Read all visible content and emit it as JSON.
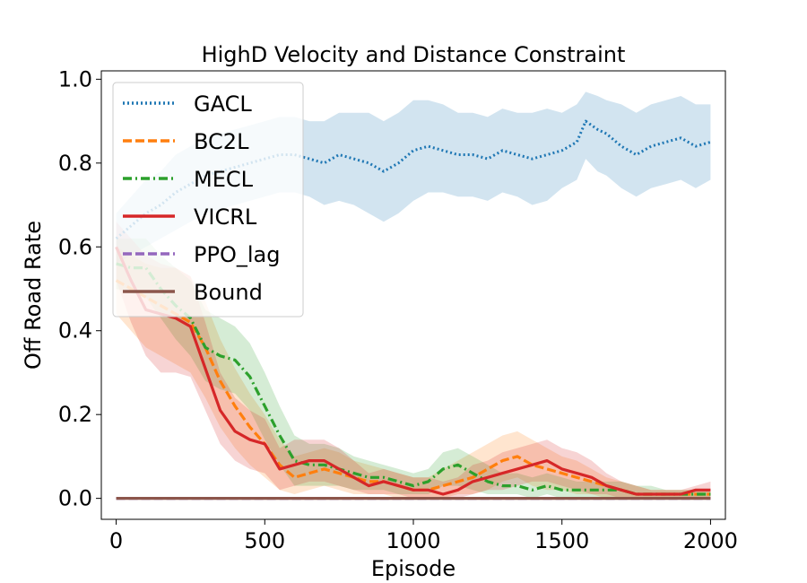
{
  "chart_data": {
    "type": "line",
    "title": "HighD Velocity and Distance Constraint",
    "xlabel": "Episode",
    "ylabel": "Off Road Rate",
    "xlim": [
      -50,
      2050
    ],
    "ylim": [
      -0.05,
      1.02
    ],
    "xticks": [
      0,
      500,
      1000,
      1500,
      2000
    ],
    "xtick_labels": [
      "0",
      "500",
      "1000",
      "1500",
      "2000"
    ],
    "yticks": [
      0.0,
      0.2,
      0.4,
      0.6,
      0.8,
      1.0
    ],
    "ytick_labels": [
      "0.0",
      "0.2",
      "0.4",
      "0.6",
      "0.8",
      "1.0"
    ],
    "legend_position": "upper-left",
    "series": [
      {
        "name": "GACL",
        "color": "#1f77b4",
        "dash": "dotted",
        "x": [
          0,
          50,
          100,
          150,
          200,
          250,
          300,
          350,
          400,
          450,
          500,
          550,
          600,
          650,
          700,
          750,
          800,
          850,
          900,
          950,
          1000,
          1050,
          1100,
          1150,
          1200,
          1250,
          1300,
          1350,
          1400,
          1450,
          1500,
          1550,
          1580,
          1620,
          1650,
          1700,
          1750,
          1800,
          1850,
          1900,
          1950,
          2000
        ],
        "values": [
          0.62,
          0.65,
          0.68,
          0.7,
          0.73,
          0.75,
          0.77,
          0.78,
          0.79,
          0.8,
          0.81,
          0.82,
          0.82,
          0.81,
          0.8,
          0.82,
          0.81,
          0.8,
          0.78,
          0.8,
          0.83,
          0.84,
          0.83,
          0.82,
          0.82,
          0.81,
          0.83,
          0.82,
          0.81,
          0.82,
          0.83,
          0.85,
          0.9,
          0.88,
          0.87,
          0.84,
          0.82,
          0.84,
          0.85,
          0.86,
          0.84,
          0.85
        ],
        "band_low": [
          0.56,
          0.58,
          0.6,
          0.62,
          0.64,
          0.66,
          0.68,
          0.69,
          0.7,
          0.71,
          0.72,
          0.73,
          0.73,
          0.72,
          0.7,
          0.71,
          0.7,
          0.68,
          0.66,
          0.68,
          0.71,
          0.73,
          0.73,
          0.72,
          0.72,
          0.71,
          0.73,
          0.72,
          0.7,
          0.71,
          0.74,
          0.76,
          0.81,
          0.78,
          0.77,
          0.74,
          0.72,
          0.74,
          0.75,
          0.76,
          0.74,
          0.76
        ],
        "band_high": [
          0.68,
          0.72,
          0.76,
          0.78,
          0.82,
          0.84,
          0.86,
          0.87,
          0.88,
          0.89,
          0.9,
          0.91,
          0.91,
          0.9,
          0.9,
          0.92,
          0.92,
          0.92,
          0.9,
          0.92,
          0.95,
          0.95,
          0.94,
          0.92,
          0.92,
          0.91,
          0.93,
          0.92,
          0.92,
          0.93,
          0.92,
          0.94,
          0.97,
          0.96,
          0.95,
          0.94,
          0.92,
          0.94,
          0.95,
          0.96,
          0.94,
          0.94
        ]
      },
      {
        "name": "BC2L",
        "color": "#ff7f0e",
        "dash": "dashed",
        "x": [
          0,
          50,
          100,
          150,
          200,
          250,
          300,
          350,
          400,
          450,
          500,
          550,
          600,
          650,
          700,
          750,
          800,
          850,
          900,
          950,
          1000,
          1050,
          1100,
          1150,
          1200,
          1250,
          1300,
          1350,
          1400,
          1450,
          1500,
          1550,
          1600,
          1650,
          1700,
          1750,
          1800,
          1850,
          1900,
          1950,
          2000
        ],
        "values": [
          0.52,
          0.5,
          0.48,
          0.46,
          0.44,
          0.42,
          0.36,
          0.28,
          0.22,
          0.17,
          0.13,
          0.08,
          0.05,
          0.06,
          0.07,
          0.06,
          0.05,
          0.04,
          0.04,
          0.03,
          0.02,
          0.02,
          0.03,
          0.04,
          0.05,
          0.07,
          0.09,
          0.1,
          0.08,
          0.07,
          0.06,
          0.05,
          0.04,
          0.03,
          0.02,
          0.01,
          0.01,
          0.01,
          0.01,
          0.01,
          0.01
        ],
        "band_low": [
          0.44,
          0.4,
          0.36,
          0.34,
          0.32,
          0.3,
          0.24,
          0.17,
          0.12,
          0.08,
          0.05,
          0.02,
          0.01,
          0.02,
          0.03,
          0.02,
          0.01,
          0.01,
          0.01,
          0.0,
          0.0,
          0.0,
          0.0,
          0.01,
          0.01,
          0.02,
          0.04,
          0.05,
          0.03,
          0.02,
          0.02,
          0.01,
          0.01,
          0.0,
          0.0,
          0.0,
          0.0,
          0.0,
          0.0,
          0.0,
          0.0
        ],
        "band_high": [
          0.6,
          0.58,
          0.56,
          0.55,
          0.55,
          0.53,
          0.47,
          0.38,
          0.31,
          0.25,
          0.2,
          0.14,
          0.1,
          0.11,
          0.12,
          0.11,
          0.09,
          0.08,
          0.07,
          0.06,
          0.05,
          0.05,
          0.07,
          0.09,
          0.11,
          0.13,
          0.15,
          0.16,
          0.14,
          0.12,
          0.1,
          0.09,
          0.07,
          0.05,
          0.04,
          0.03,
          0.02,
          0.02,
          0.02,
          0.02,
          0.02
        ]
      },
      {
        "name": "MECL",
        "color": "#2ca02c",
        "dash": "dashdot",
        "x": [
          0,
          50,
          100,
          150,
          200,
          250,
          300,
          350,
          400,
          450,
          500,
          550,
          600,
          650,
          700,
          750,
          800,
          850,
          900,
          950,
          1000,
          1050,
          1100,
          1150,
          1200,
          1250,
          1300,
          1350,
          1400,
          1450,
          1500,
          1550,
          1600,
          1650,
          1700,
          1750,
          1800,
          1850,
          1900,
          1950,
          2000
        ],
        "values": [
          0.56,
          0.55,
          0.55,
          0.5,
          0.46,
          0.43,
          0.36,
          0.34,
          0.33,
          0.29,
          0.22,
          0.15,
          0.09,
          0.08,
          0.08,
          0.07,
          0.06,
          0.05,
          0.05,
          0.04,
          0.03,
          0.04,
          0.07,
          0.08,
          0.06,
          0.04,
          0.03,
          0.03,
          0.02,
          0.03,
          0.02,
          0.02,
          0.02,
          0.02,
          0.02,
          0.01,
          0.01,
          0.01,
          0.01,
          0.01,
          0.01
        ],
        "band_low": [
          0.5,
          0.49,
          0.48,
          0.43,
          0.38,
          0.34,
          0.28,
          0.26,
          0.25,
          0.21,
          0.14,
          0.08,
          0.03,
          0.03,
          0.03,
          0.03,
          0.02,
          0.02,
          0.02,
          0.01,
          0.01,
          0.01,
          0.03,
          0.03,
          0.02,
          0.01,
          0.01,
          0.01,
          0.0,
          0.01,
          0.0,
          0.0,
          0.0,
          0.0,
          0.0,
          0.0,
          0.0,
          0.0,
          0.0,
          0.0,
          0.0
        ],
        "band_high": [
          0.62,
          0.62,
          0.62,
          0.58,
          0.55,
          0.52,
          0.45,
          0.43,
          0.41,
          0.37,
          0.3,
          0.22,
          0.15,
          0.13,
          0.13,
          0.12,
          0.1,
          0.09,
          0.08,
          0.07,
          0.06,
          0.07,
          0.11,
          0.12,
          0.1,
          0.08,
          0.06,
          0.06,
          0.05,
          0.06,
          0.05,
          0.04,
          0.04,
          0.04,
          0.04,
          0.03,
          0.03,
          0.02,
          0.02,
          0.02,
          0.02
        ]
      },
      {
        "name": "VICRL",
        "color": "#d62728",
        "dash": "solid",
        "x": [
          0,
          50,
          100,
          150,
          200,
          250,
          300,
          350,
          400,
          450,
          500,
          550,
          600,
          650,
          700,
          750,
          800,
          850,
          900,
          950,
          1000,
          1050,
          1100,
          1150,
          1200,
          1250,
          1300,
          1350,
          1400,
          1450,
          1500,
          1550,
          1600,
          1650,
          1700,
          1750,
          1800,
          1850,
          1900,
          1950,
          2000
        ],
        "values": [
          0.6,
          0.52,
          0.45,
          0.44,
          0.43,
          0.41,
          0.31,
          0.21,
          0.16,
          0.14,
          0.13,
          0.07,
          0.08,
          0.09,
          0.09,
          0.07,
          0.05,
          0.03,
          0.04,
          0.03,
          0.02,
          0.02,
          0.01,
          0.02,
          0.04,
          0.05,
          0.06,
          0.07,
          0.08,
          0.09,
          0.07,
          0.06,
          0.05,
          0.03,
          0.02,
          0.01,
          0.01,
          0.01,
          0.01,
          0.02,
          0.02
        ],
        "band_low": [
          0.52,
          0.42,
          0.34,
          0.3,
          0.3,
          0.29,
          0.21,
          0.13,
          0.09,
          0.07,
          0.06,
          0.02,
          0.03,
          0.04,
          0.04,
          0.03,
          0.02,
          0.01,
          0.01,
          0.01,
          0.0,
          0.0,
          0.0,
          0.0,
          0.01,
          0.02,
          0.02,
          0.03,
          0.04,
          0.04,
          0.03,
          0.02,
          0.01,
          0.01,
          0.0,
          0.0,
          0.0,
          0.0,
          0.0,
          0.0,
          0.0
        ],
        "band_high": [
          0.66,
          0.62,
          0.58,
          0.56,
          0.55,
          0.53,
          0.42,
          0.3,
          0.24,
          0.21,
          0.19,
          0.12,
          0.14,
          0.14,
          0.14,
          0.12,
          0.09,
          0.06,
          0.07,
          0.06,
          0.05,
          0.05,
          0.04,
          0.05,
          0.08,
          0.09,
          0.11,
          0.12,
          0.13,
          0.14,
          0.12,
          0.11,
          0.09,
          0.06,
          0.04,
          0.03,
          0.02,
          0.02,
          0.02,
          0.03,
          0.04
        ]
      },
      {
        "name": "PPO_lag",
        "color": "#9467bd",
        "dash": "dashed",
        "x": [
          0,
          2000
        ],
        "values": [
          0.0,
          0.0
        ]
      },
      {
        "name": "Bound",
        "color": "#8c564b",
        "dash": "solid",
        "x": [
          0,
          2000
        ],
        "values": [
          0.0,
          0.0
        ]
      }
    ]
  }
}
